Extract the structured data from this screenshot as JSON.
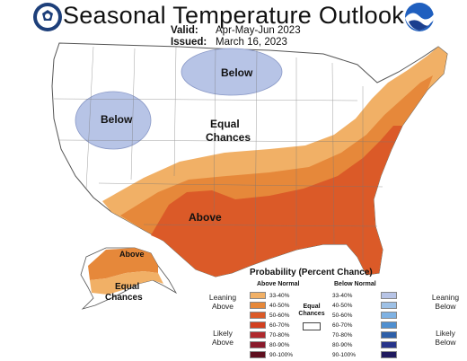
{
  "title": "Seasonal Temperature Outlook",
  "valid_label": "Valid:",
  "valid_value": "Apr-May-Jun 2023",
  "issued_label": "Issued:",
  "issued_value": "March 16, 2023",
  "logos": {
    "left": "doc-seal-icon",
    "right": "noaa-logo-icon"
  },
  "map_labels": {
    "below_north": "Below",
    "below_west": "Below",
    "equal_chances_line1": "Equal",
    "equal_chances_line2": "Chances",
    "above_main": "Above",
    "alaska_above": "Above",
    "alaska_equal_line1": "Equal",
    "alaska_equal_line2": "Chances"
  },
  "colors": {
    "above_33_40": "#f1b066",
    "above_40_50": "#e6883a",
    "above_50_60": "#db5a28",
    "above_60_70": "#d2401f",
    "below_33_40": "#b7c4e6"
  },
  "legend": {
    "title": "Probability (Percent Chance)",
    "above_header": "Above Normal",
    "below_header": "Below Normal",
    "equal_line1": "Equal",
    "equal_line2": "Chances",
    "leaning_above_1": "Leaning",
    "leaning_above_2": "Above",
    "likely_above_1": "Likely",
    "likely_above_2": "Above",
    "leaning_below_1": "Leaning",
    "leaning_below_2": "Below",
    "likely_below_1": "Likely",
    "likely_below_2": "Below",
    "above": [
      {
        "label": "33-40%",
        "color": "#f1b066"
      },
      {
        "label": "40-50%",
        "color": "#e6883a"
      },
      {
        "label": "50-60%",
        "color": "#db5a28"
      },
      {
        "label": "60-70%",
        "color": "#d2401f"
      },
      {
        "label": "70-80%",
        "color": "#b02a2e"
      },
      {
        "label": "80-90%",
        "color": "#8a1a2b"
      },
      {
        "label": "90-100%",
        "color": "#5e0f1e"
      }
    ],
    "below": [
      {
        "label": "33-40%",
        "color": "#b7c4e6"
      },
      {
        "label": "40-50%",
        "color": "#9ec1e6"
      },
      {
        "label": "50-60%",
        "color": "#7fb2e3"
      },
      {
        "label": "60-70%",
        "color": "#4f8fd0"
      },
      {
        "label": "70-80%",
        "color": "#2e5fa8"
      },
      {
        "label": "80-90%",
        "color": "#27348a"
      },
      {
        "label": "90-100%",
        "color": "#1f1a5e"
      }
    ]
  }
}
